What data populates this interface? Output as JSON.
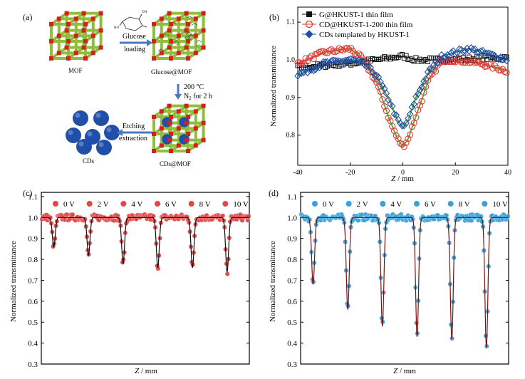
{
  "panel_a": {
    "label": "(a)",
    "mof_label": "MOF",
    "glucose_mof_label": "Glucose@MOF",
    "cds_mof_label": "CDs@MOF",
    "cds_label": "CDs",
    "arrow1_line1": "Glucose",
    "arrow1_line2": "loading",
    "arrow2_line1": "200 °C",
    "arrow2_line2": "N",
    "arrow2_sub": "2",
    "arrow2_line2_rest": " for 2 h",
    "arrow3_line1": "Etching",
    "arrow3_line2": "extraction",
    "glucose_oh": "OH",
    "colors": {
      "strut": "#8fbf3a",
      "node": "#d62020",
      "sphere": "#1f4fa8"
    }
  },
  "chart_data": [
    {
      "panel": "(b)",
      "type": "scatter",
      "xlabel_italic": "Z",
      "xlabel_rest": " / mm",
      "ylabel": "Normalized transmittance",
      "xlim": [
        -40,
        40
      ],
      "ylim": [
        0.72,
        1.14
      ],
      "xticks": [
        -40,
        -20,
        0,
        20,
        40
      ],
      "yticks": [
        0.8,
        0.9,
        1.0,
        1.1
      ],
      "ytick_labels": [
        "0.8",
        "0.9",
        "1.0",
        "1.1"
      ],
      "legend_position": "top-left",
      "series": [
        {
          "name": "G@HKUST-1 thin film",
          "marker": "square",
          "color": "#111111",
          "fit_color": "#111111",
          "x": [
            -40,
            -30,
            -20,
            -10,
            -5,
            0,
            5,
            10,
            20,
            30,
            40
          ],
          "y": [
            0.98,
            0.985,
            0.99,
            1.0,
            1.005,
            1.01,
            1.0,
            1.0,
            1.0,
            1.005,
            1.005
          ]
        },
        {
          "name": "CD@HKUST-1-200 thin film",
          "marker": "circle",
          "color": "#e53935",
          "fit_color": "#5cb040",
          "x": [
            -40,
            -30,
            -20,
            -15,
            -10,
            -5,
            -2,
            0,
            2,
            5,
            10,
            15,
            20,
            30,
            40
          ],
          "y": [
            0.99,
            1.02,
            1.03,
            1.0,
            0.94,
            0.84,
            0.79,
            0.77,
            0.79,
            0.85,
            0.95,
            1.0,
            1.0,
            0.99,
            0.97
          ]
        },
        {
          "name": "CDs templated by HKUST-1",
          "marker": "diamond",
          "color": "#1f4fa8",
          "fit_color": "#5cb040",
          "x": [
            -40,
            -30,
            -20,
            -15,
            -10,
            -5,
            -2,
            0,
            2,
            5,
            10,
            15,
            20,
            25,
            30,
            40
          ],
          "y": [
            0.96,
            0.99,
            1.0,
            0.99,
            0.96,
            0.89,
            0.84,
            0.82,
            0.84,
            0.9,
            0.97,
            1.01,
            1.02,
            1.03,
            1.02,
            1.0
          ]
        }
      ]
    },
    {
      "panel": "(c)",
      "type": "scatter",
      "xlabel_italic": "Z",
      "xlabel_rest": " / mm",
      "ylabel": "Normalized transmittance",
      "ylim": [
        0.3,
        1.12
      ],
      "yticks": [
        0.3,
        0.4,
        0.5,
        0.6,
        0.7,
        0.8,
        0.9,
        1.0,
        1.1
      ],
      "ytick_labels": [
        "0.3",
        "0.4",
        "0.5",
        "0.6",
        "0.7",
        "0.8",
        "0.9",
        "1.0",
        "1.1"
      ],
      "marker_color": "#e04848",
      "fit_color": "#111111",
      "segments": [
        {
          "name": "0 V",
          "min_y": 0.86
        },
        {
          "name": "2 V",
          "min_y": 0.82
        },
        {
          "name": "4 V",
          "min_y": 0.78
        },
        {
          "name": "6 V",
          "min_y": 0.76
        },
        {
          "name": "8 V",
          "min_y": 0.76
        },
        {
          "name": "10 V",
          "min_y": 0.74
        }
      ]
    },
    {
      "panel": "(d)",
      "type": "scatter",
      "xlabel_italic": "Z",
      "xlabel_rest": " / mm",
      "ylabel": "Normalized transmittance",
      "ylim": [
        0.3,
        1.12
      ],
      "yticks": [
        0.3,
        0.4,
        0.5,
        0.6,
        0.7,
        0.8,
        0.9,
        1.0,
        1.1
      ],
      "ytick_labels": [
        "0.3",
        "0.4",
        "0.5",
        "0.6",
        "0.7",
        "0.8",
        "0.9",
        "1.0",
        "1.1"
      ],
      "marker_color": "#3aa0d8",
      "fit_color": "#7a1010",
      "segments": [
        {
          "name": "0 V",
          "min_y": 0.68
        },
        {
          "name": "2 V",
          "min_y": 0.56
        },
        {
          "name": "4 V",
          "min_y": 0.48
        },
        {
          "name": "6 V",
          "min_y": 0.43
        },
        {
          "name": "8 V",
          "min_y": 0.42
        },
        {
          "name": "10 V",
          "min_y": 0.38
        }
      ]
    }
  ]
}
